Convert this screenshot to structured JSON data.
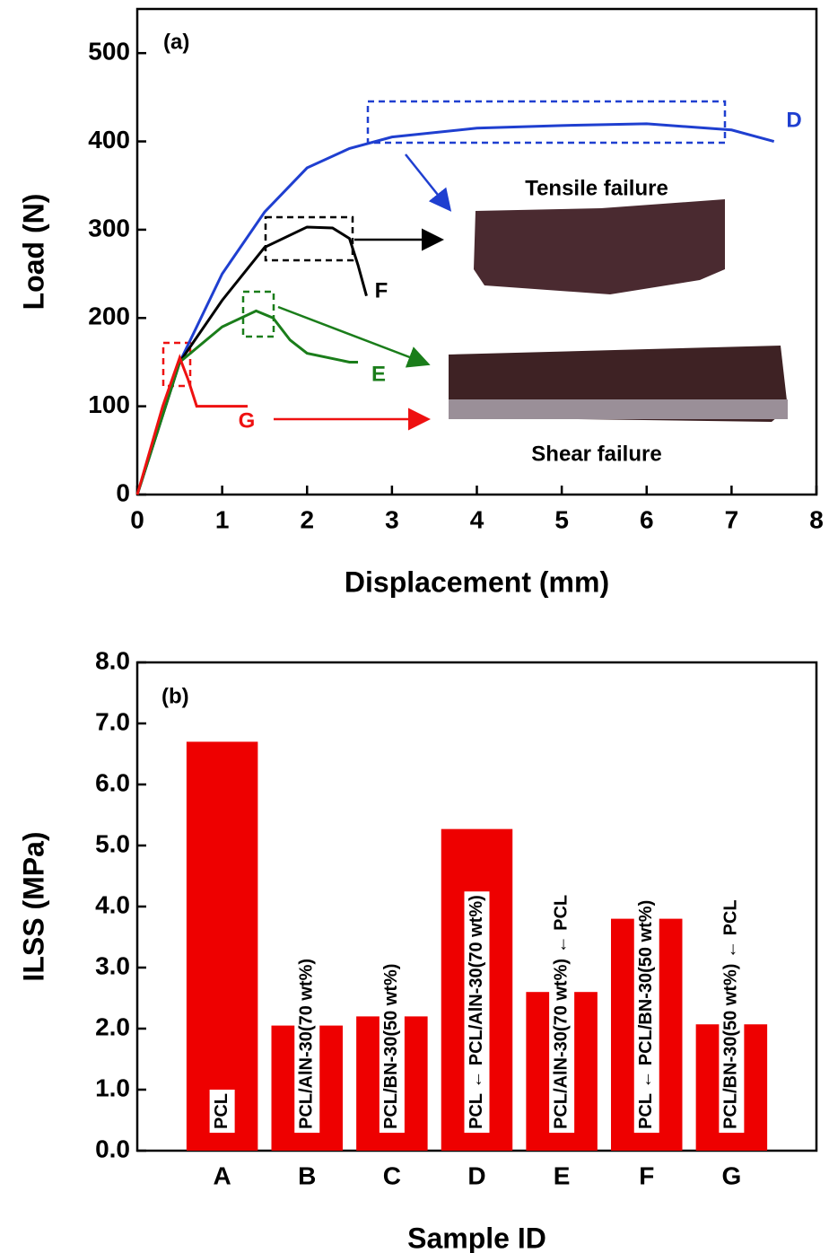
{
  "chart_data": [
    {
      "type": "line",
      "x_label": "Displacement (mm)",
      "y_label": "Load (N)",
      "annotations": [
        "(a)",
        "Tensile failure",
        "Shear failure"
      ],
      "xlim": [
        0,
        8
      ],
      "xticks": [
        0,
        1,
        2,
        3,
        4,
        5,
        6,
        7,
        8
      ],
      "ylim": [
        0,
        550
      ],
      "yticks": [
        0,
        100,
        200,
        300,
        400,
        500
      ],
      "series": [
        {
          "name": "D",
          "color": "#1f3fd0",
          "x": [
            0,
            0.5,
            1,
            1.5,
            2,
            2.5,
            3,
            4,
            5,
            6,
            7,
            7.5
          ],
          "values": [
            0,
            150,
            250,
            320,
            370,
            392,
            405,
            415,
            418,
            420,
            413,
            400
          ]
        },
        {
          "name": "F",
          "color": "#000000",
          "x": [
            0,
            0.5,
            1,
            1.5,
            2,
            2.3,
            2.5,
            2.6,
            2.7
          ],
          "values": [
            0,
            150,
            220,
            280,
            303,
            302,
            290,
            260,
            225
          ]
        },
        {
          "name": "E",
          "color": "#1a7d1a",
          "x": [
            0,
            0.5,
            1,
            1.4,
            1.6,
            1.8,
            2,
            2.5,
            2.6
          ],
          "values": [
            0,
            150,
            190,
            208,
            200,
            175,
            160,
            150,
            150
          ]
        },
        {
          "name": "G",
          "color": "#ee1111",
          "x": [
            0,
            0.3,
            0.5,
            0.6,
            0.7,
            1,
            1.3
          ],
          "values": [
            0,
            100,
            155,
            130,
            100,
            100,
            100
          ]
        }
      ]
    },
    {
      "type": "bar",
      "x_label": "Sample ID",
      "y_label": "ILSS (MPa)",
      "annotations": [
        "(b)"
      ],
      "color": "#ee0000",
      "categories": [
        "A",
        "B",
        "C",
        "D",
        "E",
        "F",
        "G"
      ],
      "values": [
        6.7,
        2.05,
        2.2,
        5.27,
        2.6,
        3.8,
        2.07
      ],
      "bar_labels": [
        "PCL",
        "PCL/AlN-30(70 wt%)",
        "PCL/BN-30(50 wt%)",
        "PCL ← PCL/AlN-30(70 wt%)",
        "PCL/AlN-30(70 wt%) ← PCL",
        "PCL ← PCL/BN-30(50 wt%)",
        "PCL/BN-30(50 wt%) ← PCL"
      ],
      "ylim": [
        0,
        8
      ],
      "yticks": [
        {
          "value": 0,
          "label": "0.0"
        },
        {
          "value": 1,
          "label": "1.0"
        },
        {
          "value": 2,
          "label": "2.0"
        },
        {
          "value": 3,
          "label": "3.0"
        },
        {
          "value": 4,
          "label": "4.0"
        },
        {
          "value": 5,
          "label": "5.0"
        },
        {
          "value": 6,
          "label": "6.0"
        },
        {
          "value": 7,
          "label": "7.0"
        },
        {
          "value": 8,
          "label": "8.0"
        }
      ]
    }
  ]
}
